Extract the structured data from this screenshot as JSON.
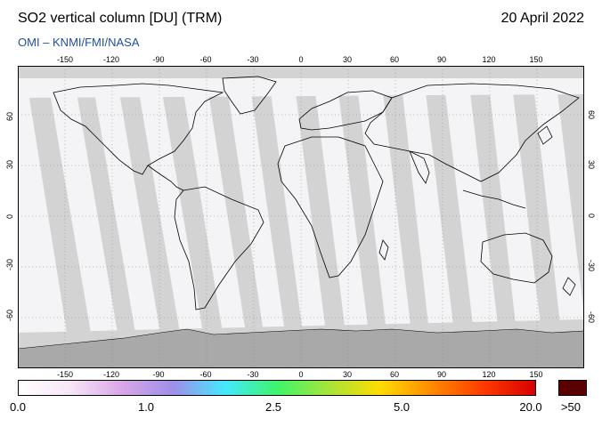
{
  "header": {
    "title": "SO2 vertical column [DU] (TRM)",
    "date": "20 April 2022",
    "credit": "OMI  –  KNMI/FMI/NASA"
  },
  "map": {
    "lon_ticks": [
      "-150",
      "-120",
      "-90",
      "-60",
      "-30",
      "0",
      "30",
      "60",
      "90",
      "120",
      "150"
    ],
    "lat_ticks": [
      "60",
      "30",
      "0",
      "-30",
      "-60"
    ],
    "colors": {
      "ocean_gap": "#d3d3d3",
      "polar": "#d3d3d3",
      "swath": "#f4f4f7",
      "land": "#ffffff",
      "coast": "#000000",
      "grid": "#808080"
    }
  },
  "colorbar": {
    "labels": [
      "0.0",
      "1.0",
      "2.5",
      "5.0",
      "20.0",
      ">50"
    ],
    "overflow_color": "#5a0000",
    "stops": [
      "#ffffff",
      "#f6e6f6",
      "#d9a6e8",
      "#9d8fe8",
      "#45e8ff",
      "#3ef56a",
      "#a6e43a",
      "#ffdc00",
      "#ff8a00",
      "#ff3a00",
      "#d60000"
    ]
  }
}
